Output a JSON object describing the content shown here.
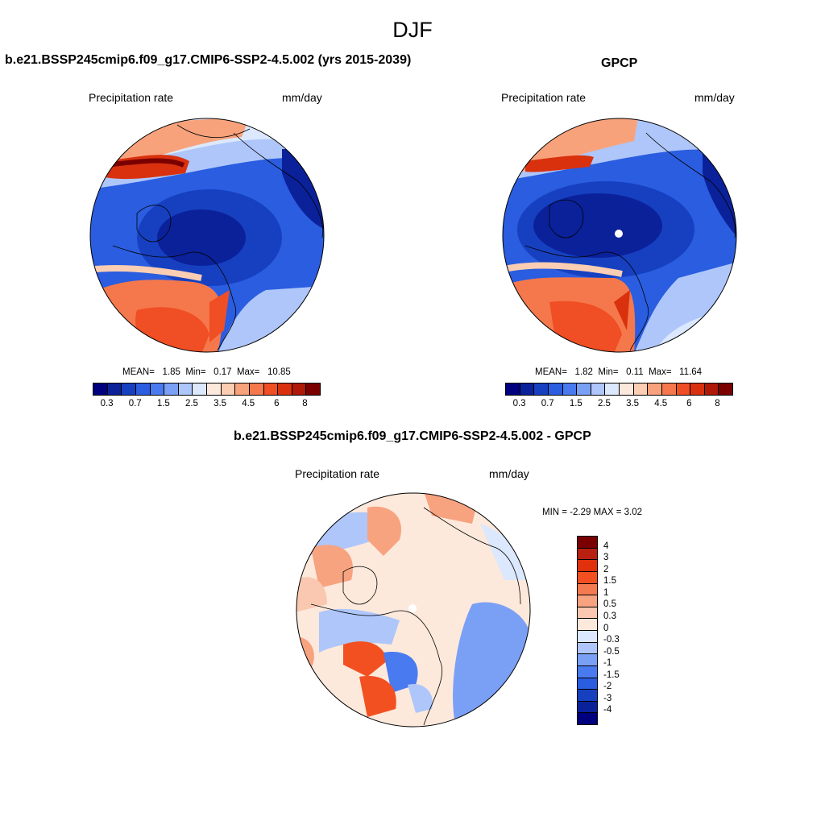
{
  "title": "DJF",
  "panels": [
    {
      "title": "b.e21.BSSP245cmip6.f09_g17.CMIP6-SSP2-4.5.002 (yrs 2015-2039)",
      "field_label": "Precipitation rate",
      "units": "mm/day",
      "stats": {
        "mean_label": "MEAN=",
        "mean": "1.85",
        "min_label": "Min=",
        "min": "0.17",
        "max_label": "Max=",
        "max": "10.85"
      }
    },
    {
      "title": "GPCP",
      "field_label": "Precipitation rate",
      "units": "mm/day",
      "stats": {
        "mean_label": "MEAN=",
        "mean": "1.82",
        "min_label": "Min=",
        "min": "0.11",
        "max_label": "Max=",
        "max": "11.64"
      }
    },
    {
      "title": "b.e21.BSSP245cmip6.f09_g17.CMIP6-SSP2-4.5.002 - GPCP",
      "field_label": "Precipitation rate",
      "units": "mm/day",
      "stats_text": "MIN =  -2.29 MAX =   3.02"
    }
  ],
  "colorbar_abs": {
    "colors": [
      "#00007f",
      "#0b219a",
      "#1640c0",
      "#2a5de0",
      "#4a7af0",
      "#7aa0f6",
      "#aec6fa",
      "#dbe8fd",
      "#fde9dc",
      "#fbcdb2",
      "#f8a27c",
      "#f5784c",
      "#f04e24",
      "#d9310e",
      "#b01808",
      "#7a0000"
    ],
    "ticks": [
      "0.3",
      "0.7",
      "1.5",
      "2.5",
      "3.5",
      "4.5",
      "6",
      "8"
    ]
  },
  "colorbar_diff": {
    "colors": [
      "#7a0000",
      "#b82010",
      "#e0300c",
      "#f25020",
      "#f47a50",
      "#f7a380",
      "#fac8b0",
      "#fde9dc",
      "#dbe8fd",
      "#aec6fa",
      "#7aa0f6",
      "#4a7af0",
      "#2a5de0",
      "#1640c0",
      "#0b219a",
      "#00007f"
    ],
    "ticks": [
      "4",
      "3",
      "2",
      "1.5",
      "1",
      "0.5",
      "0.3",
      "0",
      "-0.3",
      "-0.5",
      "-1",
      "-1.5",
      "-2",
      "-3",
      "-4"
    ]
  }
}
